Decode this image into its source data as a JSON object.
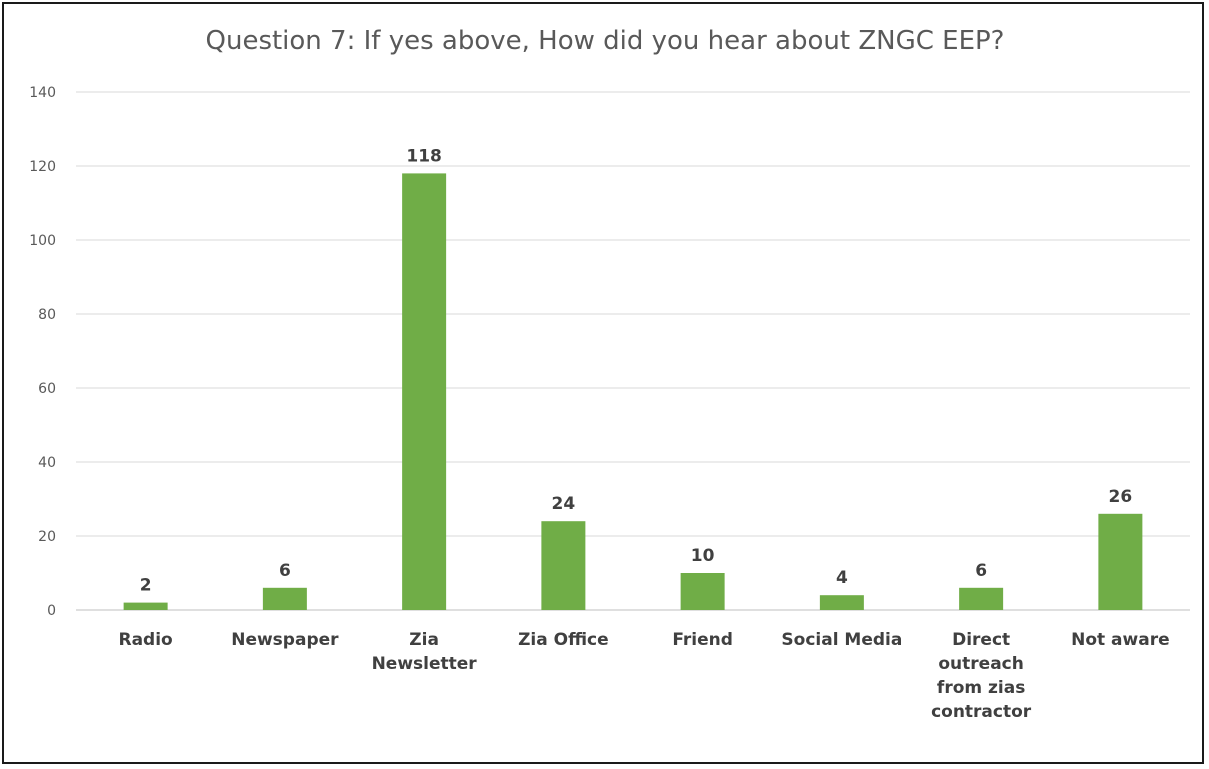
{
  "chart_data": {
    "type": "bar",
    "title": "Question 7: If yes above, How did you hear about ZNGC EEP?",
    "categories": [
      "Radio",
      "Newspaper",
      "Zia Newsletter",
      "Zia Office",
      "Friend",
      "Social Media",
      "Direct outreach from zias contractor",
      "Not aware"
    ],
    "category_lines": [
      [
        "Radio"
      ],
      [
        "Newspaper"
      ],
      [
        "Zia",
        "Newsletter"
      ],
      [
        "Zia Office"
      ],
      [
        "Friend"
      ],
      [
        "Social Media"
      ],
      [
        "Direct",
        "outreach",
        "from zias",
        "contractor"
      ],
      [
        "Not aware"
      ]
    ],
    "values": [
      2,
      6,
      118,
      24,
      10,
      4,
      6,
      26
    ],
    "ylim": [
      0,
      140
    ],
    "yticks": [
      0,
      20,
      40,
      60,
      80,
      100,
      120,
      140
    ],
    "xlabel": "",
    "ylabel": "",
    "grid": true,
    "legend": "none",
    "bar_color": "#70ad47"
  }
}
